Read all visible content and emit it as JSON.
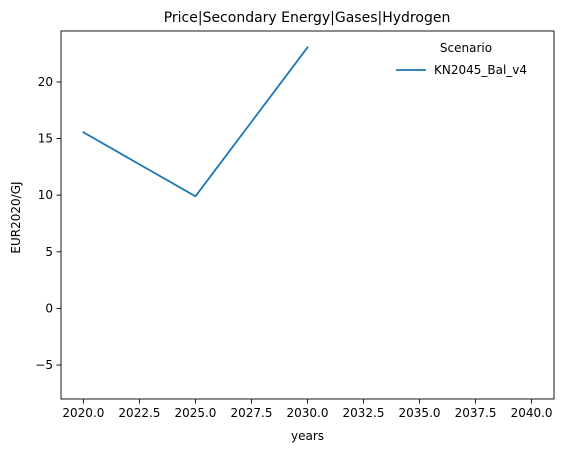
{
  "chart_data": {
    "type": "line",
    "title": "Price|Secondary Energy|Gases|Hydrogen",
    "xlabel": "years",
    "ylabel": "EUR2020/GJ",
    "xlim": [
      2019.0,
      2041.0
    ],
    "ylim": [
      -8.0,
      24.5
    ],
    "xticks": [
      2020.0,
      2022.5,
      2025.0,
      2027.5,
      2030.0,
      2032.5,
      2035.0,
      2037.5,
      2040.0
    ],
    "xtick_labels": [
      "2020.0",
      "2022.5",
      "2025.0",
      "2027.5",
      "2030.0",
      "2032.5",
      "2035.0",
      "2037.5",
      "2040.0"
    ],
    "yticks": [
      -5,
      0,
      5,
      10,
      15,
      20
    ],
    "ytick_labels": [
      "−5",
      "0",
      "5",
      "10",
      "15",
      "20"
    ],
    "grid": false,
    "legend": {
      "title": "Scenario",
      "placement": "top-right"
    },
    "series": [
      {
        "name": "KN2045_Bal_v4",
        "color": "#1f77b4",
        "x": [
          2020,
          2025,
          2030
        ],
        "y": [
          15.55,
          9.9,
          23.05
        ]
      }
    ]
  }
}
